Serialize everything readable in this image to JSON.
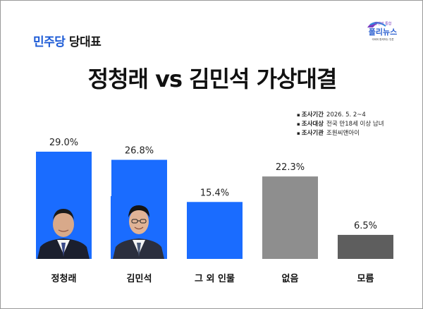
{
  "header": {
    "party_name": "민주당",
    "party_suffix": "당대표",
    "logo_tagline": "상생과 통합",
    "logo_name": "폴리뉴스",
    "logo_small": "국회와 함께하는 언론"
  },
  "title": "정청래 vs 김민석 가상대결",
  "survey": {
    "period_label": "조사기간",
    "period_value": "2026. 5. 2~4",
    "target_label": "조사대상",
    "target_value": "전국 만18세 이상 남녀",
    "agency_label": "조사기관",
    "agency_value": "조원씨앤아이"
  },
  "colors": {
    "blue": "#1a6cff",
    "gray": "#8e8e8e",
    "darkgray": "#5e5e5e",
    "party_blue": "#1d5bd6"
  },
  "chart_data": {
    "type": "bar",
    "title": "정청래 vs 김민석 가상대결",
    "categories": [
      "정청래",
      "김민석",
      "그 외 인물",
      "없음",
      "모름"
    ],
    "values": [
      29.0,
      26.8,
      15.4,
      22.3,
      6.5
    ],
    "value_labels": [
      "29.0%",
      "26.8%",
      "15.4%",
      "22.3%",
      "6.5%"
    ],
    "bar_colors": [
      "#1a6cff",
      "#1a6cff",
      "#1a6cff",
      "#8e8e8e",
      "#5e5e5e"
    ],
    "ylim": [
      0,
      29.0
    ],
    "xlabel": "",
    "ylabel": "",
    "grid": false
  }
}
